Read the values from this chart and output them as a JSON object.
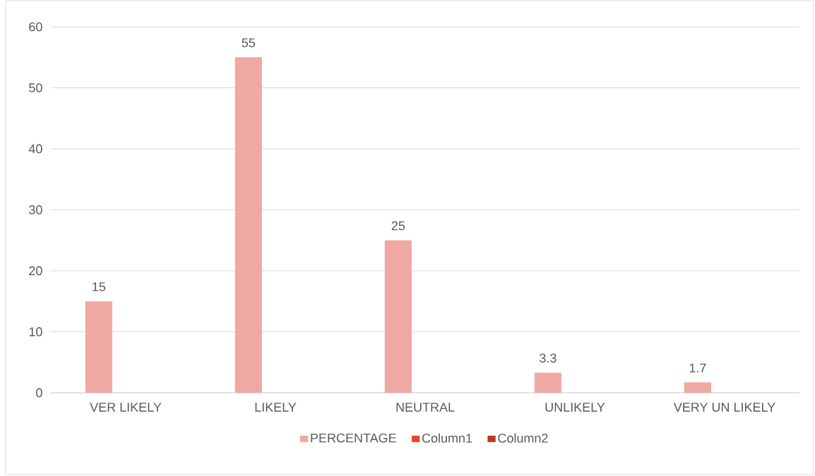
{
  "chart_data": {
    "type": "bar",
    "categories": [
      "VER LIKELY",
      "LIKELY",
      "NEUTRAL",
      "UNLIKELY",
      "VERY UN LIKELY"
    ],
    "series": [
      {
        "name": "PERCENTAGE",
        "color": "#f0a9a2",
        "values": [
          15,
          55,
          25,
          3.3,
          1.7
        ]
      },
      {
        "name": "Column1",
        "color": "#e8472b",
        "values": [
          null,
          null,
          null,
          null,
          null
        ]
      },
      {
        "name": "Column2",
        "color": "#c0391e",
        "values": [
          null,
          null,
          null,
          null,
          null
        ]
      }
    ],
    "ylim": [
      0,
      60
    ],
    "yticks": [
      0,
      10,
      20,
      30,
      40,
      50,
      60
    ],
    "grid": "y",
    "legend": "bottom",
    "data_labels": true
  }
}
